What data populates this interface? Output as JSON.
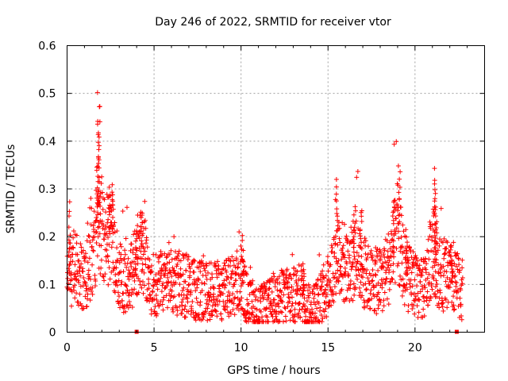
{
  "chart_data": {
    "type": "scatter",
    "title": "Day 246 of 2022, SRMTID for receiver vtor",
    "xlabel": "GPS time / hours",
    "ylabel": "SRMTID / TECUs",
    "xlim": [
      0,
      24
    ],
    "ylim": [
      0,
      0.6
    ],
    "xticks": [
      0,
      5,
      10,
      15,
      20
    ],
    "xtick_labels": [
      "0",
      "5",
      "10",
      "15",
      "20"
    ],
    "yticks": [
      0,
      0.1,
      0.2,
      0.3,
      0.4,
      0.5,
      0.6
    ],
    "ytick_labels": [
      "0",
      "0.1",
      "0.2",
      "0.3",
      "0.4",
      "0.5",
      "0.6"
    ],
    "grid": true,
    "marker": "plus",
    "color": "#ff0000",
    "series": [
      {
        "name": "SRMTID",
        "envelope": [
          [
            0.0,
            0.1
          ],
          [
            0.25,
            0.12
          ],
          [
            0.5,
            0.13
          ],
          [
            0.75,
            0.11
          ],
          [
            1.0,
            0.1
          ],
          [
            1.25,
            0.12
          ],
          [
            1.5,
            0.15
          ],
          [
            1.75,
            0.2
          ],
          [
            2.0,
            0.22
          ],
          [
            2.25,
            0.18
          ],
          [
            2.5,
            0.2
          ],
          [
            2.75,
            0.14
          ],
          [
            3.0,
            0.11
          ],
          [
            3.25,
            0.1
          ],
          [
            3.5,
            0.11
          ],
          [
            3.75,
            0.12
          ],
          [
            4.0,
            0.13
          ],
          [
            4.25,
            0.17
          ],
          [
            4.5,
            0.14
          ],
          [
            4.75,
            0.1
          ],
          [
            5.0,
            0.09
          ],
          [
            5.5,
            0.09
          ],
          [
            6.0,
            0.1
          ],
          [
            6.5,
            0.09
          ],
          [
            7.0,
            0.09
          ],
          [
            7.5,
            0.08
          ],
          [
            8.0,
            0.08
          ],
          [
            8.5,
            0.08
          ],
          [
            9.0,
            0.08
          ],
          [
            9.5,
            0.09
          ],
          [
            10.0,
            0.1
          ],
          [
            10.25,
            0.07
          ],
          [
            10.5,
            0.05
          ],
          [
            11.0,
            0.04
          ],
          [
            11.5,
            0.05
          ],
          [
            12.0,
            0.06
          ],
          [
            12.5,
            0.07
          ],
          [
            13.0,
            0.07
          ],
          [
            13.5,
            0.08
          ],
          [
            13.75,
            0.05
          ],
          [
            14.0,
            0.04
          ],
          [
            14.5,
            0.06
          ],
          [
            15.0,
            0.09
          ],
          [
            15.25,
            0.12
          ],
          [
            15.5,
            0.17
          ],
          [
            15.75,
            0.15
          ],
          [
            16.0,
            0.12
          ],
          [
            16.5,
            0.14
          ],
          [
            16.75,
            0.16
          ],
          [
            17.0,
            0.12
          ],
          [
            17.5,
            0.1
          ],
          [
            18.0,
            0.1
          ],
          [
            18.5,
            0.13
          ],
          [
            18.75,
            0.16
          ],
          [
            19.0,
            0.2
          ],
          [
            19.25,
            0.15
          ],
          [
            19.5,
            0.11
          ],
          [
            20.0,
            0.09
          ],
          [
            20.5,
            0.08
          ],
          [
            20.75,
            0.11
          ],
          [
            21.0,
            0.17
          ],
          [
            21.25,
            0.13
          ],
          [
            21.5,
            0.11
          ],
          [
            22.0,
            0.11
          ],
          [
            22.5,
            0.09
          ],
          [
            22.75,
            0.08
          ]
        ],
        "peaks": [
          [
            0.15,
            0.27
          ],
          [
            1.8,
            0.5
          ],
          [
            1.85,
            0.47
          ],
          [
            1.8,
            0.44
          ],
          [
            1.75,
            0.35
          ],
          [
            2.4,
            0.3
          ],
          [
            2.6,
            0.31
          ],
          [
            4.3,
            0.25
          ],
          [
            4.0,
            0.21
          ],
          [
            10.1,
            0.2
          ],
          [
            13.6,
            0.14
          ],
          [
            15.5,
            0.32
          ],
          [
            16.5,
            0.26
          ],
          [
            16.9,
            0.25
          ],
          [
            18.8,
            0.28
          ],
          [
            19.1,
            0.35
          ],
          [
            19.5,
            0.21
          ],
          [
            21.1,
            0.34
          ],
          [
            21.15,
            0.31
          ],
          [
            21.2,
            0.26
          ],
          [
            22.1,
            0.16
          ]
        ]
      }
    ],
    "baseline_markers": [
      4.0,
      22.4
    ]
  }
}
